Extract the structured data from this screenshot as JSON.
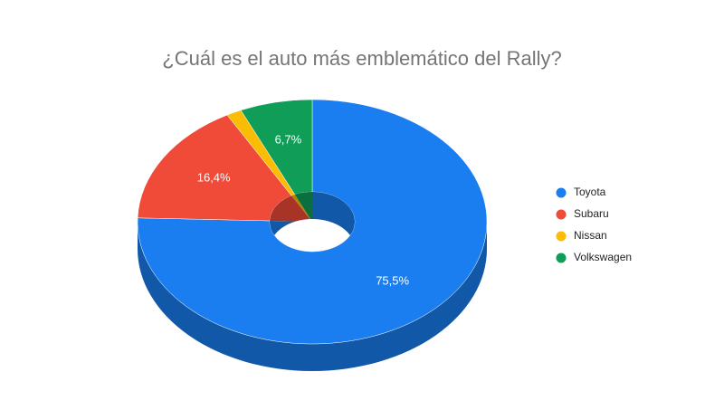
{
  "chart_data": {
    "type": "pie",
    "style": "3d-donut",
    "title": "¿Cuál es el auto más emblemático del Rally?",
    "categories": [
      "Toyota",
      "Subaru",
      "Nissan",
      "Volkswagen"
    ],
    "values": [
      75.5,
      16.4,
      1.4,
      6.7
    ],
    "value_labels": [
      "75,5%",
      "16,4%",
      null,
      "6,7%"
    ],
    "colors": [
      "#1a7ef0",
      "#f04a38",
      "#fbbc04",
      "#0f9d58"
    ],
    "legend": "right"
  }
}
